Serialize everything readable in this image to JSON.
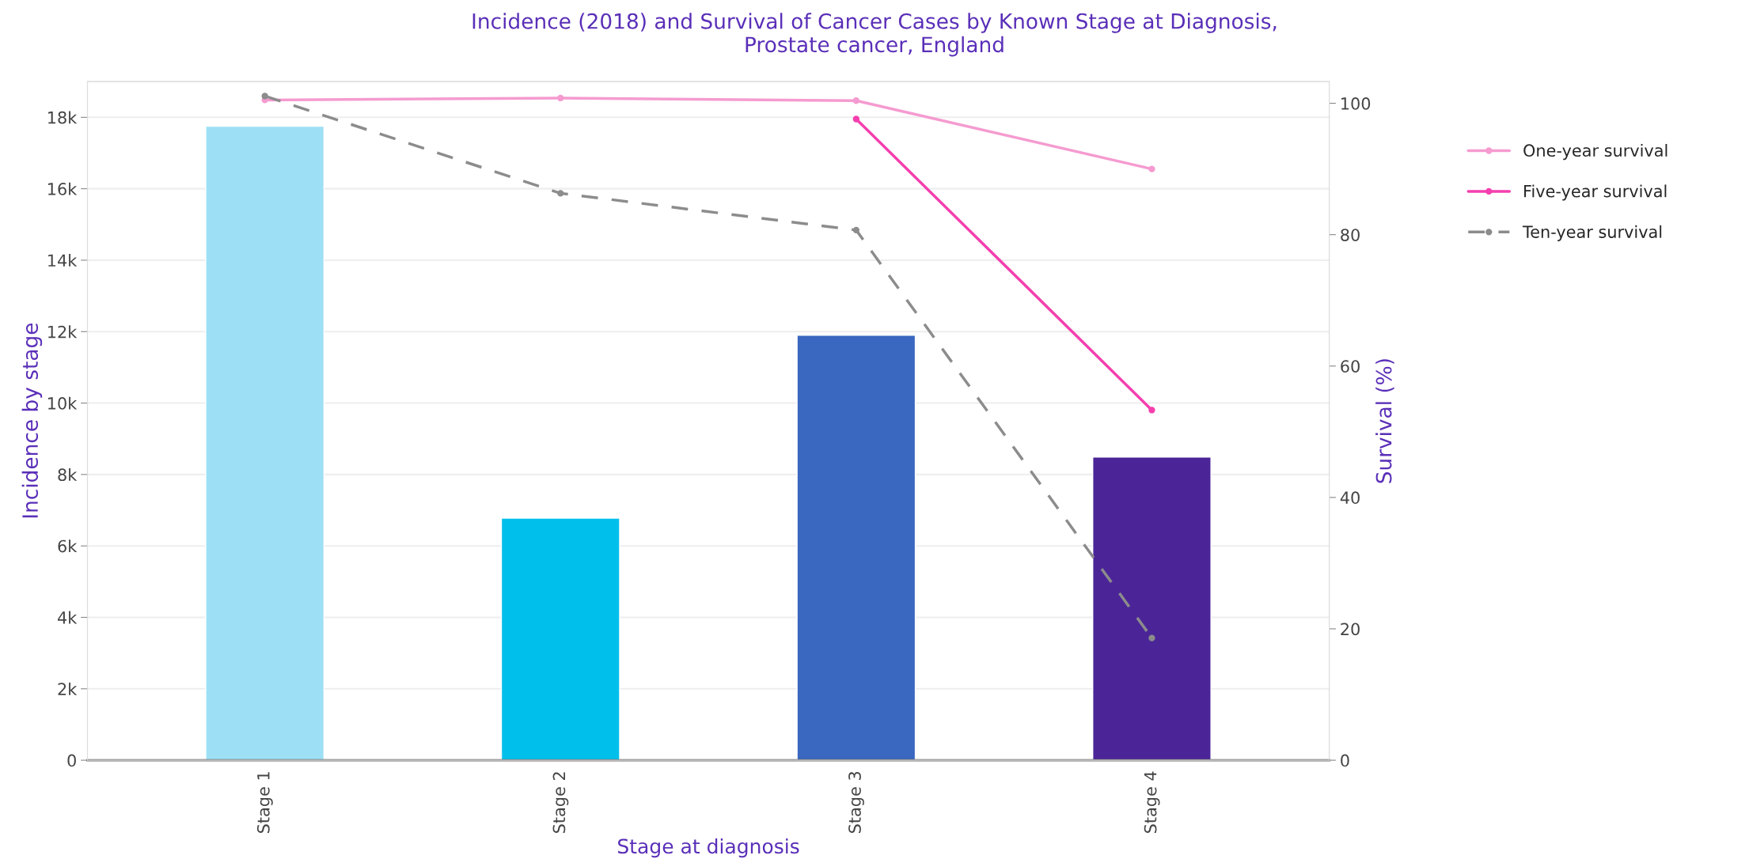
{
  "chart_data": {
    "type": "bar",
    "title": "Incidence (2018) and Survival of Cancer Cases by Known Stage at Diagnosis,\nProstate cancer, England",
    "xlabel": "Stage at diagnosis",
    "ylabel": "Incidence by stage",
    "y2label": "Survival (%)",
    "categories": [
      "Stage 1",
      "Stage 2",
      "Stage 3",
      "Stage 4"
    ],
    "values": [
      17750,
      6780,
      11900,
      8490
    ],
    "colors": [
      "#9de0f5",
      "#00bfeb",
      "#3a67bf",
      "#4b2598"
    ],
    "ylim": [
      0,
      19000
    ],
    "yticks": [
      0,
      {
        "value": 2000,
        "label": "2k"
      },
      {
        "value": 4000,
        "label": "4k"
      },
      {
        "value": 6000,
        "label": "6k"
      },
      {
        "value": 8000,
        "label": "8k"
      },
      {
        "value": 10000,
        "label": "10k"
      },
      {
        "value": 12000,
        "label": "12k"
      },
      {
        "value": 14000,
        "label": "14k"
      },
      {
        "value": 16000,
        "label": "16k"
      },
      {
        "value": 18000,
        "label": "18k"
      }
    ],
    "y2lim": [
      0,
      103.3
    ],
    "y2ticks": [
      0,
      20,
      40,
      60,
      80,
      100
    ],
    "series": [
      {
        "name": "One-year survival",
        "type": "line",
        "axis": "y2",
        "color": "#f59bd0",
        "values": [
          100.5,
          100.8,
          100.4,
          90.0
        ],
        "marker": "circle",
        "line_style": "solid"
      },
      {
        "name": "Five-year survival",
        "type": "line",
        "axis": "y2",
        "color": "#f43fae",
        "values": [
          null,
          null,
          97.6,
          53.3
        ],
        "marker": "circle",
        "line_style": "solid"
      },
      {
        "name": "Ten-year survival",
        "type": "line",
        "axis": "y2",
        "color": "#8c8c8c",
        "values": [
          101.1,
          86.3,
          80.7,
          18.6
        ],
        "marker": "circle",
        "line_style": "dashed"
      }
    ],
    "grid": "y",
    "legend": "top right"
  }
}
